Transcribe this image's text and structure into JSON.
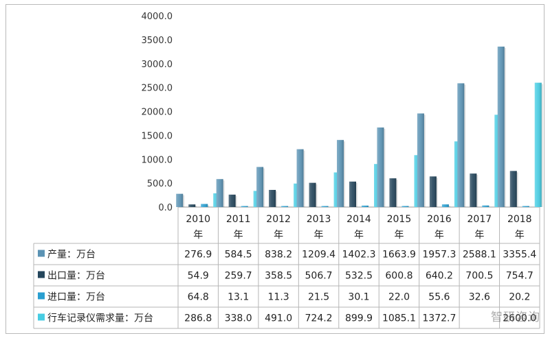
{
  "chart_data": {
    "type": "bar",
    "title": "",
    "xlabel": "",
    "ylabel": "",
    "ylim": [
      0,
      4000
    ],
    "yticks": [
      "0.0",
      "500.0",
      "1000.0",
      "1500.0",
      "2000.0",
      "2500.0",
      "3000.0",
      "3500.0",
      "4000.0"
    ],
    "grid": false,
    "categories": [
      {
        "year": "2010",
        "unit": "年"
      },
      {
        "year": "2011",
        "unit": "年"
      },
      {
        "year": "2012",
        "unit": "年"
      },
      {
        "year": "2013",
        "unit": "年"
      },
      {
        "year": "2014",
        "unit": "年"
      },
      {
        "year": "2015",
        "unit": "年"
      },
      {
        "year": "2016",
        "unit": "年"
      },
      {
        "year": "2017",
        "unit": "年"
      },
      {
        "year": "2018",
        "unit": "年"
      }
    ],
    "series": [
      {
        "name": "产量：万台",
        "color": "#5b93b4",
        "values": [
          276.9,
          584.5,
          838.2,
          1209.4,
          1402.3,
          1663.9,
          1957.3,
          2588.1,
          3355.4
        ],
        "labels": [
          "276.9",
          "584.5",
          "838.2",
          "1209.4",
          "1402.3",
          "1663.9",
          "1957.3",
          "2588.1",
          "3355.4"
        ]
      },
      {
        "name": "出口量：万台",
        "color": "#25465c",
        "values": [
          54.9,
          259.7,
          358.5,
          506.7,
          532.5,
          600.8,
          640.2,
          700.5,
          754.7
        ],
        "labels": [
          "54.9",
          "259.7",
          "358.5",
          "506.7",
          "532.5",
          "600.8",
          "640.2",
          "700.5",
          "754.7"
        ]
      },
      {
        "name": "进口量：万台",
        "color": "#2a9fd0",
        "values": [
          64.8,
          13.1,
          11.3,
          21.5,
          30.1,
          22.0,
          55.6,
          32.6,
          20.2
        ],
        "labels": [
          "64.8",
          "13.1",
          "11.3",
          "21.5",
          "30.1",
          "22.0",
          "55.6",
          "32.6",
          "20.2"
        ]
      },
      {
        "name": "行车记录仪需求量：万台",
        "color": "#48cde3",
        "values": [
          286.8,
          338.0,
          491.0,
          724.2,
          899.9,
          1085.1,
          1372.7,
          1930.0,
          2600.0
        ],
        "labels": [
          "286.8",
          "338.0",
          "491.0",
          "724.2",
          "899.9",
          "1085.1",
          "1372.7",
          "",
          "2600.0"
        ]
      }
    ]
  },
  "watermark": "智研咨询"
}
